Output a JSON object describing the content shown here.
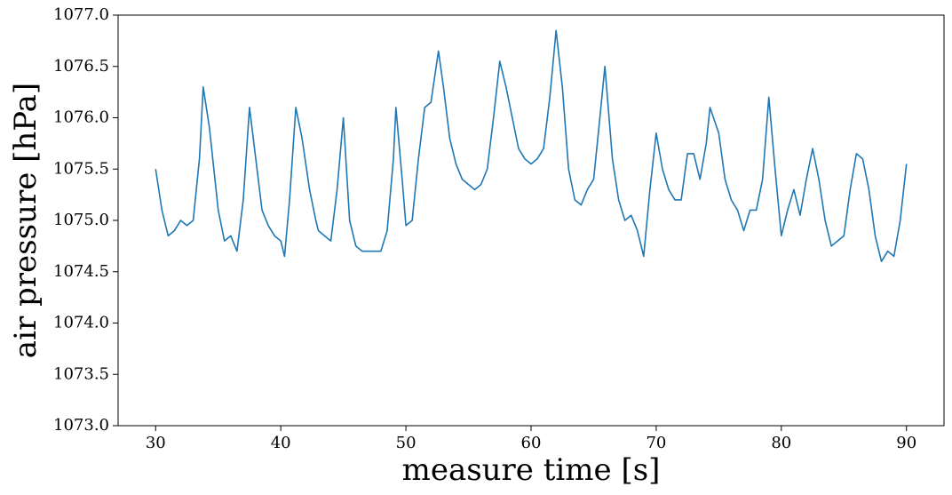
{
  "chart_data": {
    "type": "line",
    "x_label": "measure time [s]",
    "y_label": "air pressure [hPa]",
    "xlim": [
      27,
      93
    ],
    "xticks": [
      30,
      40,
      50,
      60,
      70,
      80,
      90
    ],
    "ylim": [
      1073,
      1077
    ],
    "yticks": [
      {
        "value": 1073,
        "label": "1073.0"
      },
      1073.5,
      {
        "value": 1074,
        "label": "1074.0"
      },
      1074.5,
      {
        "value": 1075,
        "label": "1075.0"
      },
      1075.5,
      {
        "value": 1076,
        "label": "1076.0"
      },
      1076.5,
      {
        "value": 1077,
        "label": "1077.0"
      }
    ],
    "series": [
      {
        "color": "#1f77b4",
        "x": [
          30,
          30.5,
          31,
          31.5,
          32,
          32.5,
          33,
          33.5,
          33.8,
          34.3,
          35,
          35.5,
          36,
          36.5,
          37,
          37.5,
          38,
          38.5,
          39,
          39.5,
          40,
          40.3,
          40.7,
          41.2,
          41.7,
          42.3,
          42.8,
          43,
          43.5,
          44,
          44.5,
          45,
          45.5,
          46,
          46.5,
          47,
          47.5,
          48,
          48.5,
          49,
          49.2,
          49.7,
          50,
          50.5,
          51,
          51.5,
          52,
          52.6,
          53,
          53.5,
          54,
          54.5,
          55,
          55.5,
          56,
          56.5,
          57,
          57.5,
          58,
          58.5,
          59,
          59.5,
          60,
          60.5,
          61,
          61.5,
          62,
          62.5,
          63,
          63.5,
          64,
          64.5,
          65,
          65.5,
          65.9,
          66.5,
          67,
          67.5,
          68,
          68.5,
          69,
          69.5,
          70,
          70.5,
          71,
          71.5,
          72,
          72.5,
          73,
          73.5,
          74,
          74.3,
          75,
          75.5,
          76,
          76.5,
          77,
          77.5,
          78,
          78.5,
          79,
          79.5,
          80,
          80.5,
          81,
          81.5,
          82,
          82.5,
          83,
          83.5,
          84,
          84.5,
          85,
          85.5,
          86,
          86.5,
          87,
          87.5,
          88,
          88.5,
          89,
          89.5,
          90
        ],
        "values": [
          1075.5,
          1075.1,
          1074.85,
          1074.9,
          1075.0,
          1074.95,
          1075.0,
          1075.6,
          1076.3,
          1075.9,
          1075.1,
          1074.8,
          1074.85,
          1074.7,
          1075.2,
          1076.1,
          1075.6,
          1075.1,
          1074.95,
          1074.85,
          1074.8,
          1074.65,
          1075.2,
          1076.1,
          1075.8,
          1075.3,
          1075.0,
          1074.9,
          1074.85,
          1074.8,
          1075.3,
          1076.0,
          1075.0,
          1074.75,
          1074.7,
          1074.7,
          1074.7,
          1074.7,
          1074.9,
          1075.6,
          1076.1,
          1075.4,
          1074.95,
          1075.0,
          1075.6,
          1076.1,
          1076.15,
          1076.65,
          1076.3,
          1075.8,
          1075.55,
          1075.4,
          1075.35,
          1075.3,
          1075.35,
          1075.5,
          1076.0,
          1076.55,
          1076.3,
          1076.0,
          1075.7,
          1075.6,
          1075.55,
          1075.6,
          1075.7,
          1076.2,
          1076.85,
          1076.3,
          1075.5,
          1075.2,
          1075.15,
          1075.3,
          1075.4,
          1076.0,
          1076.5,
          1075.6,
          1075.2,
          1075.0,
          1075.05,
          1074.9,
          1074.65,
          1075.3,
          1075.85,
          1075.5,
          1075.3,
          1075.2,
          1075.2,
          1075.65,
          1075.65,
          1075.4,
          1075.75,
          1076.1,
          1075.85,
          1075.4,
          1075.2,
          1075.1,
          1074.9,
          1075.1,
          1075.1,
          1075.4,
          1076.2,
          1075.5,
          1074.85,
          1075.1,
          1075.3,
          1075.05,
          1075.4,
          1075.7,
          1075.4,
          1075.0,
          1074.75,
          1074.8,
          1074.85,
          1075.3,
          1075.65,
          1075.6,
          1075.3,
          1074.85,
          1074.6,
          1074.7,
          1074.65,
          1075.0,
          1075.55
        ]
      }
    ]
  }
}
